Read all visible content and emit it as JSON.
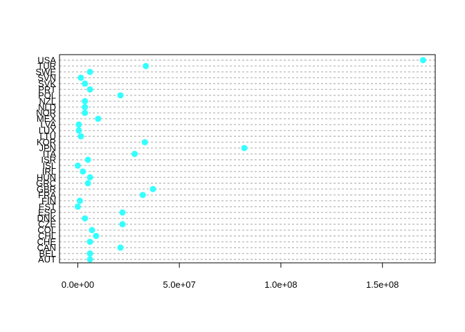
{
  "chart_data": {
    "type": "scatter",
    "title": "",
    "xlabel": "",
    "ylabel": "",
    "xlim": [
      -9000000,
      176000000
    ],
    "xticks": [
      0,
      50000000,
      100000000,
      150000000
    ],
    "xtick_labels": [
      "0.0e+00",
      "5.0e+07",
      "1.0e+08",
      "1.5e+08"
    ],
    "grid": "dashed horizontal lines per category",
    "point_color": "#33FFFF",
    "grid_color": "#BEBEBE",
    "categories": [
      "AUT",
      "BEL",
      "CAN",
      "CHE",
      "CHL",
      "COL",
      "CZE",
      "DNK",
      "ESP",
      "EST",
      "FIN",
      "FRA",
      "GBR",
      "GRC",
      "HUN",
      "IRL",
      "ISL",
      "ISR",
      "ITA",
      "JPN",
      "KOR",
      "LTU",
      "LUX",
      "LVA",
      "MEX",
      "NOR",
      "NLD",
      "NZL",
      "POL",
      "PRT",
      "SVK",
      "SVN",
      "SWE",
      "TUR",
      "USA"
    ],
    "values": [
      6000000,
      6000000,
      21000000,
      6000000,
      9000000,
      7000000,
      22000000,
      3500000,
      22000000,
      0,
      1000000,
      32000000,
      37000000,
      5000000,
      6000000,
      2500000,
      0,
      5000000,
      28000000,
      82000000,
      33000000,
      1500000,
      500000,
      500000,
      10000000,
      3500000,
      3500000,
      3500000,
      21000000,
      6000000,
      3500000,
      1500000,
      6000000,
      33500000,
      170000000
    ]
  }
}
